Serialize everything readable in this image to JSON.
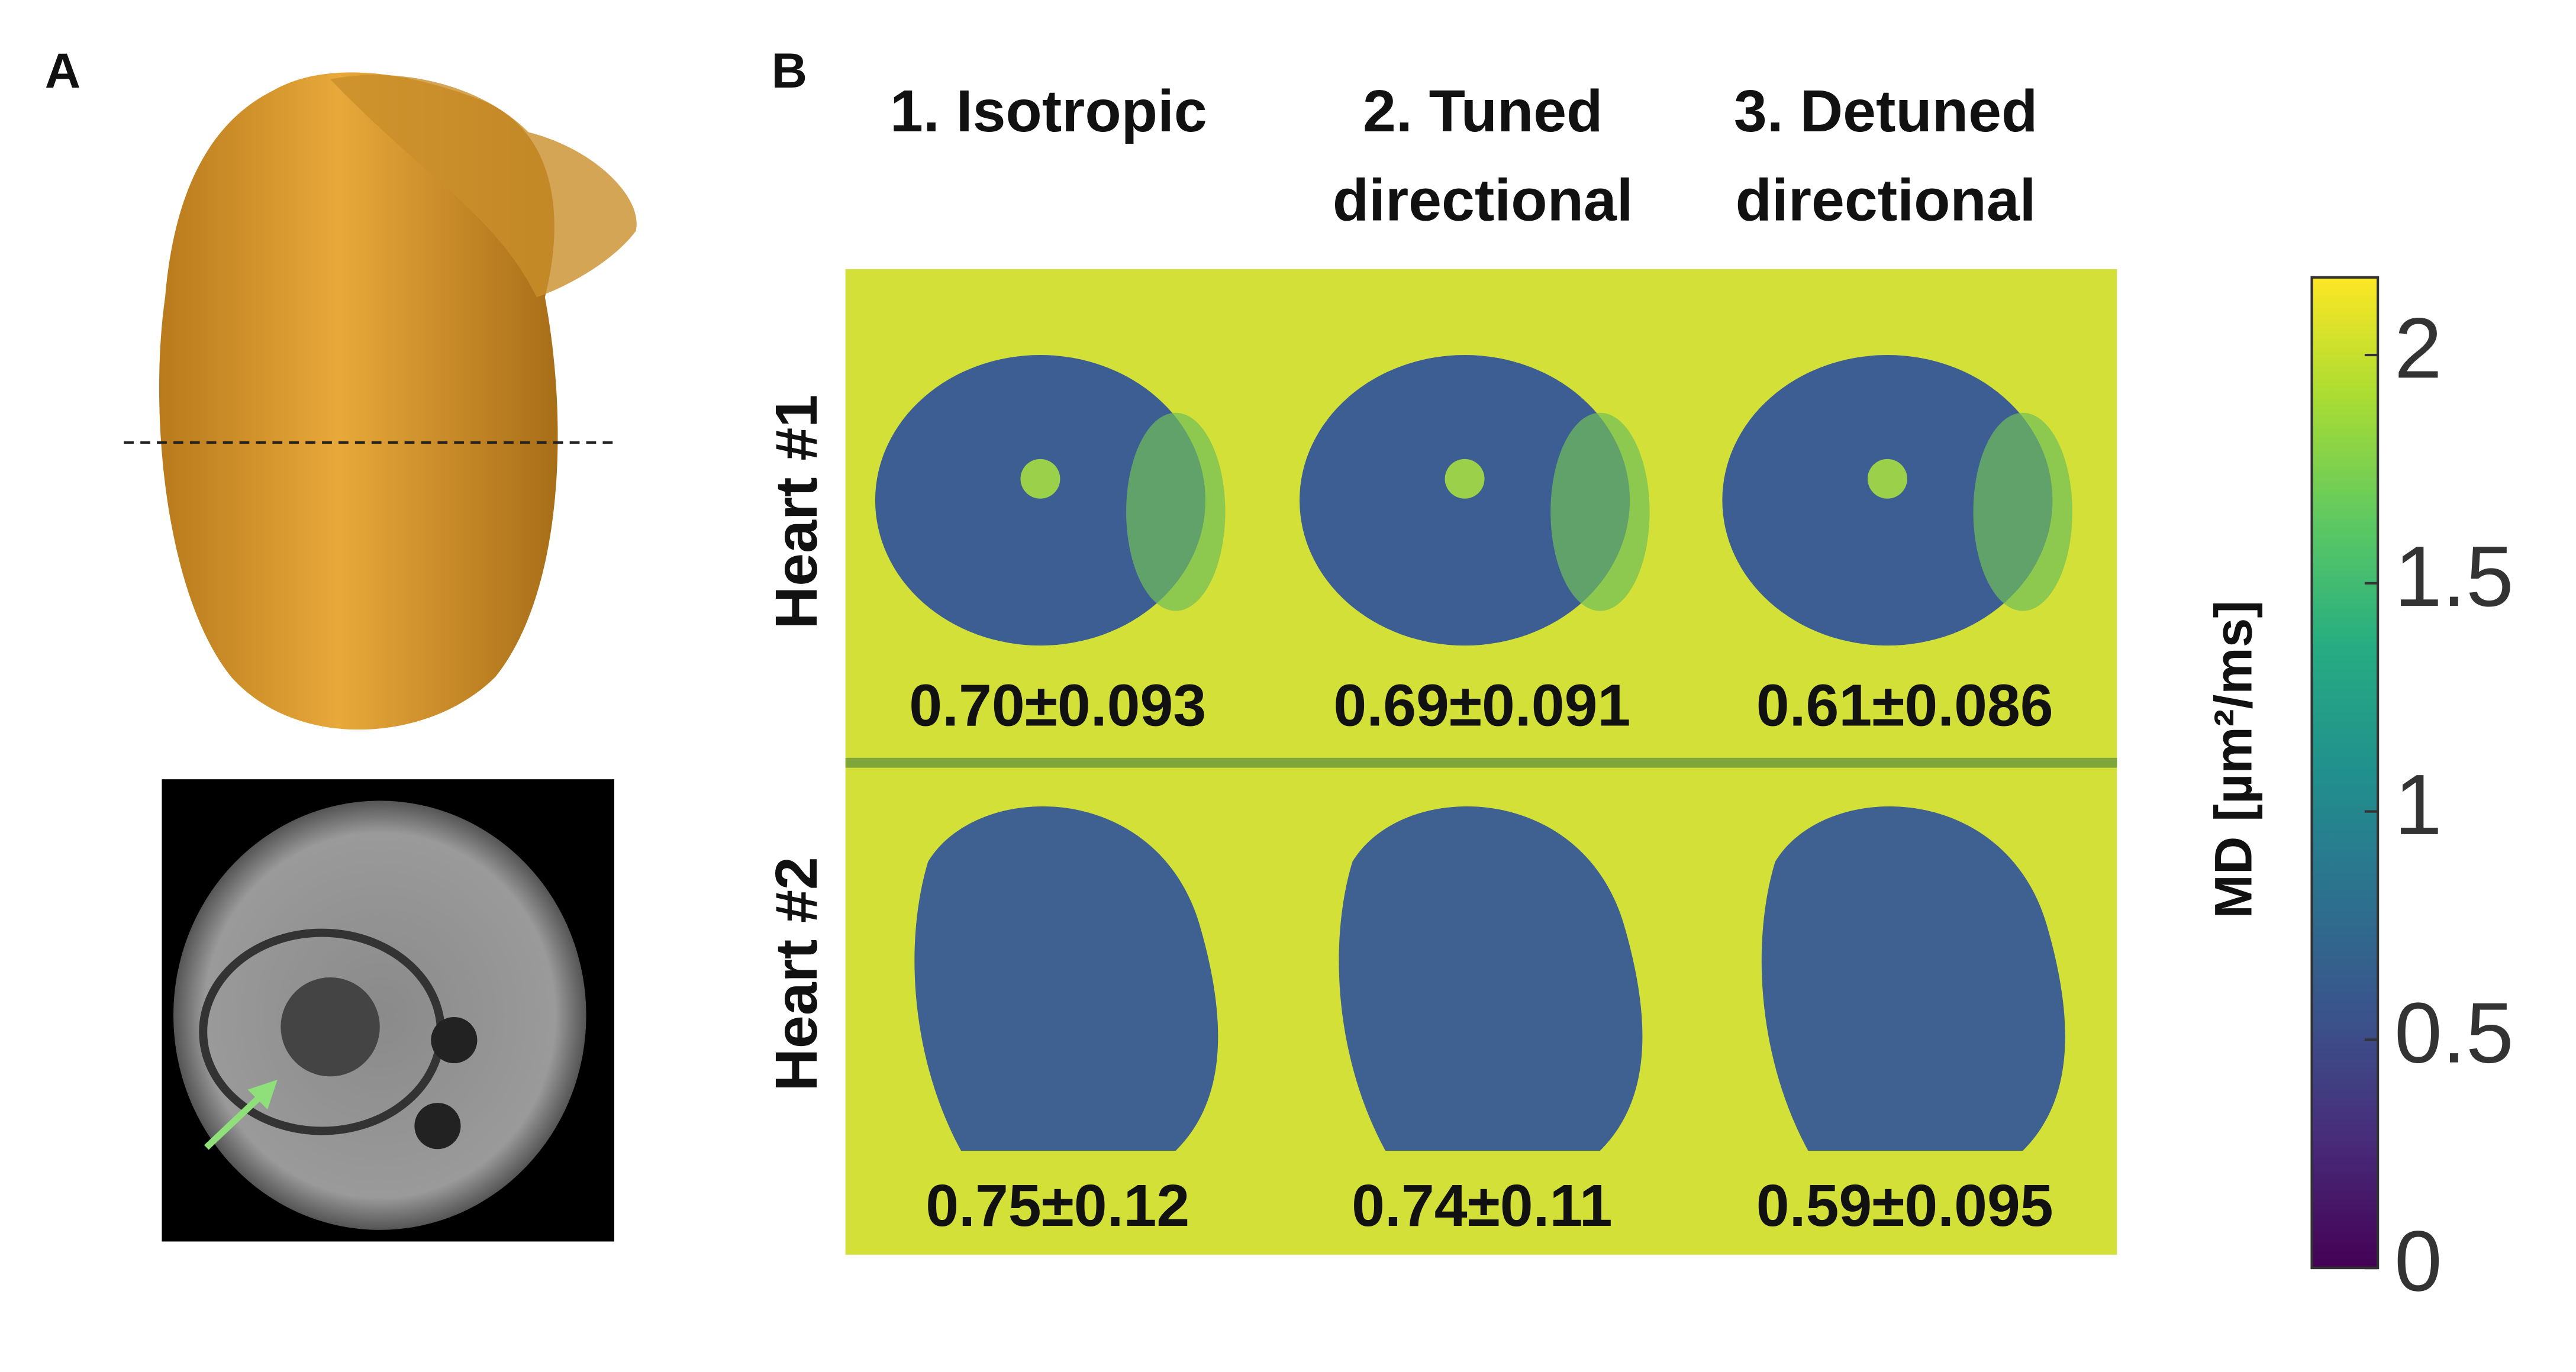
{
  "panel_a": {
    "label": "A"
  },
  "panel_b": {
    "label": "B",
    "columns": [
      {
        "lines": [
          "1. Isotropic"
        ]
      },
      {
        "lines": [
          "2. Tuned",
          "directional"
        ]
      },
      {
        "lines": [
          "3. Detuned",
          "directional"
        ]
      }
    ],
    "rows": [
      {
        "label": "Heart #1",
        "values": [
          "0.70±0.093",
          "0.69±0.091",
          "0.61±0.086"
        ]
      },
      {
        "label": "Heart #2",
        "values": [
          "0.75±0.12",
          "0.74±0.11",
          "0.59±0.095"
        ]
      }
    ]
  },
  "colorbar": {
    "label": "MD [µm²/ms]",
    "ylim": [
      0,
      2.17
    ],
    "yticks": [
      0,
      0.5,
      1,
      1.5,
      2
    ]
  }
}
